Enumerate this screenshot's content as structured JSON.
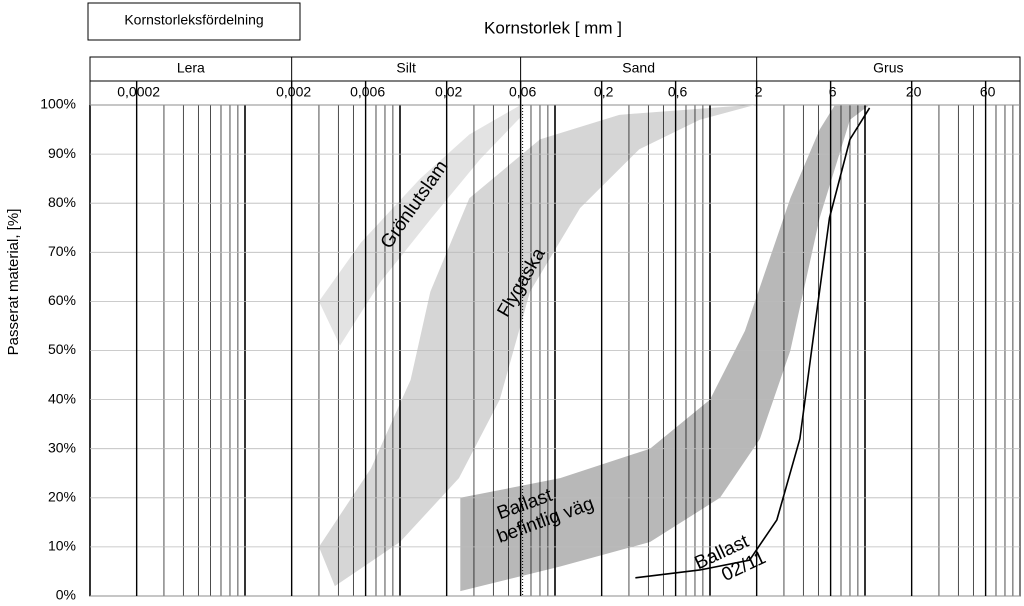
{
  "chart_data": {
    "type": "band",
    "title": "Kornstorleksfördelning",
    "xlabel": "Kornstorlek [ mm ]",
    "ylabel": "Passerat material, [%]",
    "xscale": "log",
    "xlim": [
      0.0001,
      100
    ],
    "xticks": [
      {
        "value": 0.0002,
        "label": "0,0002"
      },
      {
        "value": 0.002,
        "label": "0,002"
      },
      {
        "value": 0.006,
        "label": "0,006"
      },
      {
        "value": 0.02,
        "label": "0,02"
      },
      {
        "value": 0.06,
        "label": "0,06"
      },
      {
        "value": 0.2,
        "label": "0,2"
      },
      {
        "value": 0.6,
        "label": "0,6"
      },
      2,
      6,
      20,
      60
    ],
    "ylim": [
      0,
      100
    ],
    "yticks": [
      {
        "value": 0,
        "label": "0%"
      },
      {
        "value": 10,
        "label": "10%"
      },
      {
        "value": 20,
        "label": "20%"
      },
      {
        "value": 30,
        "label": "30%"
      },
      {
        "value": 40,
        "label": "40%"
      },
      {
        "value": 50,
        "label": "50%"
      },
      {
        "value": 60,
        "label": "60%"
      },
      {
        "value": 70,
        "label": "70%"
      },
      {
        "value": 80,
        "label": "80%"
      },
      {
        "value": 90,
        "label": "90%"
      },
      {
        "value": 100,
        "label": "100%"
      }
    ],
    "grid": true,
    "zones": [
      {
        "name": "Lera",
        "from": 0.0001,
        "to": 0.002
      },
      {
        "name": "Silt",
        "from": 0.002,
        "to": 0.06
      },
      {
        "name": "Sand",
        "from": 0.06,
        "to": 2
      },
      {
        "name": "Grus",
        "from": 2,
        "to": 100
      }
    ],
    "series": [
      {
        "name": "Grönlutslam",
        "kind": "band",
        "color": "#e3e3e3",
        "left_x": [
          0.003,
          0.0056,
          0.0135,
          0.028,
          0.06
        ],
        "left_values": [
          60,
          72,
          85,
          94,
          100
        ],
        "right_x": [
          0.0041,
          0.0075,
          0.016,
          0.033,
          0.062
        ],
        "right_values": [
          51,
          64,
          77,
          89,
          98
        ]
      },
      {
        "name": "Flygaska",
        "kind": "band",
        "color": "#d6d6d6",
        "left_x": [
          0.003,
          0.0065,
          0.0117,
          0.0157,
          0.028,
          0.08,
          0.26,
          1.8
        ],
        "left_values": [
          10,
          26,
          44,
          62,
          81,
          93,
          98,
          100
        ],
        "right_x": [
          0.0038,
          0.01,
          0.024,
          0.044,
          0.069,
          0.145,
          0.35,
          0.86,
          1.94
        ],
        "right_values": [
          2,
          11,
          24,
          40,
          62,
          79,
          91,
          97,
          100
        ]
      },
      {
        "name": "Ballast befintlig väg",
        "kind": "band",
        "color": "#b8b8b8",
        "left_x": [
          0.0245,
          0.108,
          0.41,
          1.0,
          1.68,
          3.3,
          5.1,
          6.4
        ],
        "left_values": [
          20,
          24,
          30,
          40,
          54,
          81,
          95,
          100
        ],
        "right_x": [
          0.0245,
          0.108,
          0.41,
          1.16,
          2.1,
          3.3,
          5.1,
          8.0,
          10.7
        ],
        "right_values": [
          1,
          6,
          11,
          20,
          32,
          50,
          77,
          97,
          100
        ]
      },
      {
        "name": "Ballast 02/11",
        "kind": "line",
        "color": "#000000",
        "x": [
          0.33,
          0.86,
          1.8,
          2.7,
          3.8,
          4.7,
          5.9,
          8.0,
          10.7
        ],
        "values": [
          3.7,
          5.3,
          7.3,
          15.5,
          32,
          54,
          77,
          93,
          99.4
        ]
      }
    ],
    "annotations": [
      [
        "Grönlutslam"
      ],
      [
        "Flygaska"
      ],
      [
        "Ballast",
        "befintlig väg"
      ],
      [
        "Ballast",
        "02/11"
      ]
    ]
  }
}
